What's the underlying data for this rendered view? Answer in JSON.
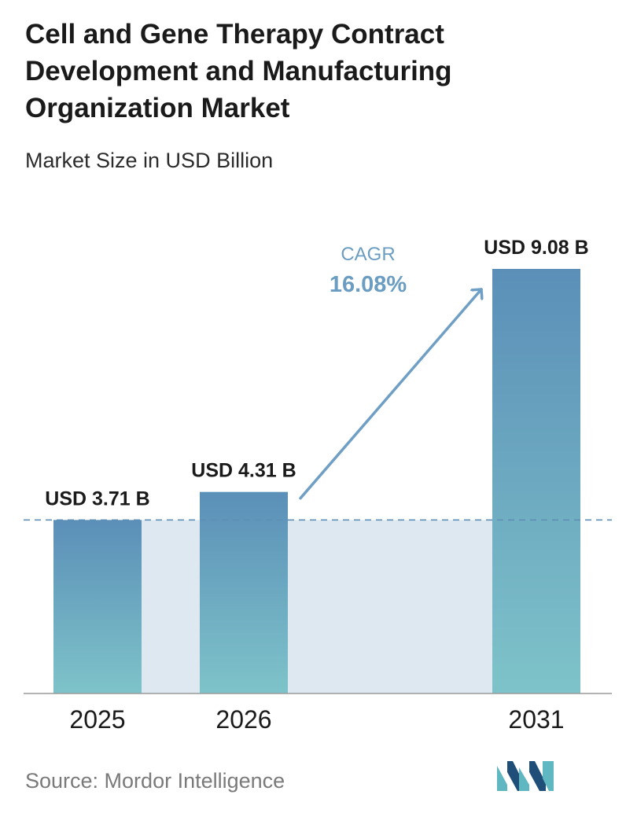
{
  "title": "Cell and Gene Therapy Contract Development and Manufacturing Organization Market",
  "subtitle": "Market Size in USD Billion",
  "source": "Source:  Mordor Intelligence",
  "colors": {
    "bar_top": "#5b8fb8",
    "bar_bottom": "#7ec3c9",
    "band": "#dde8f1",
    "dashed_line": "#5f8fb5",
    "arrow": "#6f9fc4",
    "cagr_text": "#6b9dc2",
    "axis": "#9a9a9a",
    "logo_dark": "#1f4e79",
    "logo_light": "#5fb7c2"
  },
  "cagr": {
    "label": "CAGR",
    "value": "16.08%"
  },
  "chart_data": {
    "type": "bar",
    "categories": [
      "2025",
      "2026",
      "2031"
    ],
    "values": [
      3.71,
      4.31,
      9.08
    ],
    "data_labels": [
      "USD 3.71 B",
      "USD 4.31 B",
      "USD 9.08 B"
    ],
    "title": "Cell and Gene Therapy Contract Development and Manufacturing Organization Market",
    "subtitle": "Market Size in USD Billion",
    "xlabel": "",
    "ylabel": "",
    "ylim": [
      0,
      9.08
    ],
    "grid": false,
    "legend": "none"
  }
}
